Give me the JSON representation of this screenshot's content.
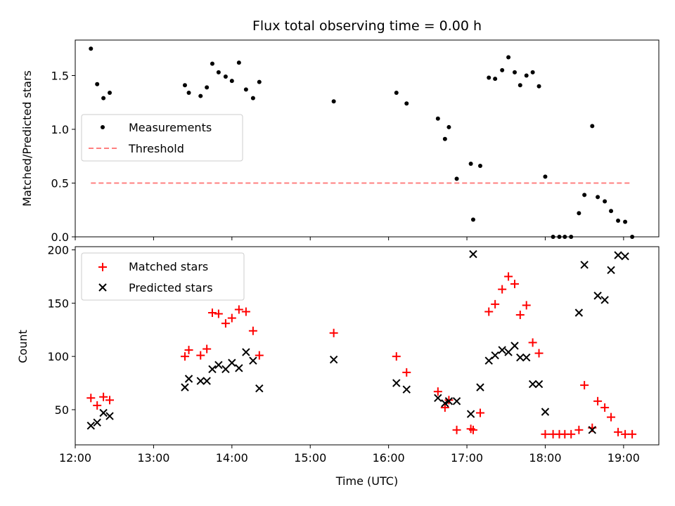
{
  "chart_data": [
    {
      "type": "scatter",
      "title": "Flux total observing time = 0.00 h",
      "ylabel": "Matched/Predicted stars",
      "xlabel": "",
      "xlim": [
        12.0,
        19.45
      ],
      "ylim": [
        0.0,
        1.83
      ],
      "yticks": [
        0.0,
        0.5,
        1.0,
        1.5
      ],
      "ytick_labels": [
        "0.0",
        "0.5",
        "1.0",
        "1.5"
      ],
      "legend": {
        "position": "center-left",
        "entries": [
          "Measurements",
          "Threshold"
        ]
      },
      "threshold": {
        "name": "Threshold",
        "value": 0.5,
        "x_range": [
          12.2,
          19.1
        ],
        "color": "#ff7f7f"
      },
      "series": [
        {
          "name": "Measurements",
          "color": "#000000",
          "points": [
            [
              12.2,
              1.75
            ],
            [
              12.28,
              1.42
            ],
            [
              12.36,
              1.29
            ],
            [
              12.44,
              1.34
            ],
            [
              13.4,
              1.41
            ],
            [
              13.45,
              1.34
            ],
            [
              13.6,
              1.31
            ],
            [
              13.68,
              1.39
            ],
            [
              13.75,
              1.61
            ],
            [
              13.83,
              1.53
            ],
            [
              13.92,
              1.49
            ],
            [
              14.0,
              1.45
            ],
            [
              14.09,
              1.62
            ],
            [
              14.18,
              1.37
            ],
            [
              14.27,
              1.29
            ],
            [
              14.35,
              1.44
            ],
            [
              15.3,
              1.26
            ],
            [
              16.1,
              1.34
            ],
            [
              16.23,
              1.24
            ],
            [
              16.63,
              1.1
            ],
            [
              16.72,
              0.91
            ],
            [
              16.77,
              1.02
            ],
            [
              16.87,
              0.54
            ],
            [
              17.05,
              0.68
            ],
            [
              17.08,
              0.16
            ],
            [
              17.17,
              0.66
            ],
            [
              17.28,
              1.48
            ],
            [
              17.36,
              1.47
            ],
            [
              17.45,
              1.55
            ],
            [
              17.53,
              1.67
            ],
            [
              17.61,
              1.53
            ],
            [
              17.68,
              1.41
            ],
            [
              17.76,
              1.5
            ],
            [
              17.84,
              1.53
            ],
            [
              17.92,
              1.4
            ],
            [
              18.0,
              0.56
            ],
            [
              18.1,
              0.0
            ],
            [
              18.18,
              0.0
            ],
            [
              18.25,
              0.0
            ],
            [
              18.33,
              0.0
            ],
            [
              18.43,
              0.22
            ],
            [
              18.5,
              0.39
            ],
            [
              18.6,
              1.03
            ],
            [
              18.67,
              0.37
            ],
            [
              18.76,
              0.33
            ],
            [
              18.84,
              0.24
            ],
            [
              18.93,
              0.15
            ],
            [
              19.02,
              0.14
            ],
            [
              19.11,
              0.0
            ]
          ]
        }
      ]
    },
    {
      "type": "scatter",
      "title": "",
      "ylabel": "Count",
      "xlabel": "Time (UTC)",
      "xlim": [
        12.0,
        19.45
      ],
      "ylim": [
        17,
        203
      ],
      "yticks": [
        50,
        100,
        150,
        200
      ],
      "ytick_labels": [
        "50",
        "100",
        "150",
        "200"
      ],
      "xticks": [
        12,
        13,
        14,
        15,
        16,
        17,
        18,
        19
      ],
      "xtick_labels": [
        "12:00",
        "13:00",
        "14:00",
        "15:00",
        "16:00",
        "17:00",
        "18:00",
        "19:00"
      ],
      "legend": {
        "position": "top-left",
        "entries": [
          "Matched stars",
          "Predicted stars"
        ]
      },
      "series": [
        {
          "name": "Matched stars",
          "marker": "plus",
          "color": "#ff0000",
          "points": [
            [
              12.2,
              61
            ],
            [
              12.28,
              54
            ],
            [
              12.36,
              62
            ],
            [
              12.44,
              59
            ],
            [
              13.4,
              100
            ],
            [
              13.45,
              106
            ],
            [
              13.6,
              101
            ],
            [
              13.68,
              107
            ],
            [
              13.75,
              141
            ],
            [
              13.83,
              140
            ],
            [
              13.92,
              131
            ],
            [
              14.0,
              136
            ],
            [
              14.09,
              144
            ],
            [
              14.18,
              142
            ],
            [
              14.27,
              124
            ],
            [
              14.35,
              101
            ],
            [
              15.3,
              122
            ],
            [
              16.1,
              100
            ],
            [
              16.23,
              85
            ],
            [
              16.63,
              67
            ],
            [
              16.72,
              52
            ],
            [
              16.77,
              59
            ],
            [
              16.87,
              31
            ],
            [
              17.05,
              32
            ],
            [
              17.08,
              31
            ],
            [
              17.17,
              47
            ],
            [
              17.28,
              142
            ],
            [
              17.36,
              149
            ],
            [
              17.45,
              163
            ],
            [
              17.53,
              175
            ],
            [
              17.61,
              168
            ],
            [
              17.68,
              139
            ],
            [
              17.76,
              148
            ],
            [
              17.84,
              113
            ],
            [
              17.92,
              103
            ],
            [
              18.0,
              27
            ],
            [
              18.1,
              27
            ],
            [
              18.18,
              27
            ],
            [
              18.25,
              27
            ],
            [
              18.33,
              27
            ],
            [
              18.43,
              31
            ],
            [
              18.5,
              73
            ],
            [
              18.6,
              33
            ],
            [
              18.67,
              58
            ],
            [
              18.76,
              52
            ],
            [
              18.84,
              43
            ],
            [
              18.93,
              29
            ],
            [
              19.02,
              27
            ],
            [
              19.11,
              27
            ]
          ]
        },
        {
          "name": "Predicted stars",
          "marker": "x",
          "color": "#000000",
          "points": [
            [
              12.2,
              35
            ],
            [
              12.28,
              38
            ],
            [
              12.36,
              47
            ],
            [
              12.44,
              44
            ],
            [
              13.4,
              71
            ],
            [
              13.45,
              79
            ],
            [
              13.6,
              77
            ],
            [
              13.68,
              77
            ],
            [
              13.75,
              88
            ],
            [
              13.83,
              92
            ],
            [
              13.92,
              88
            ],
            [
              14.0,
              94
            ],
            [
              14.09,
              89
            ],
            [
              14.18,
              104
            ],
            [
              14.27,
              96
            ],
            [
              14.35,
              70
            ],
            [
              15.3,
              97
            ],
            [
              16.1,
              75
            ],
            [
              16.23,
              69
            ],
            [
              16.63,
              61
            ],
            [
              16.72,
              56
            ],
            [
              16.77,
              58
            ],
            [
              16.87,
              58
            ],
            [
              17.05,
              46
            ],
            [
              17.08,
              196
            ],
            [
              17.17,
              71
            ],
            [
              17.28,
              96
            ],
            [
              17.36,
              101
            ],
            [
              17.45,
              106
            ],
            [
              17.53,
              104
            ],
            [
              17.61,
              110
            ],
            [
              17.68,
              99
            ],
            [
              17.76,
              99
            ],
            [
              17.84,
              74
            ],
            [
              17.92,
              74
            ],
            [
              18.0,
              48
            ],
            [
              18.43,
              141
            ],
            [
              18.5,
              186
            ],
            [
              18.6,
              31
            ],
            [
              18.67,
              157
            ],
            [
              18.76,
              153
            ],
            [
              18.84,
              181
            ],
            [
              18.93,
              195
            ],
            [
              19.02,
              194
            ]
          ]
        }
      ]
    }
  ]
}
